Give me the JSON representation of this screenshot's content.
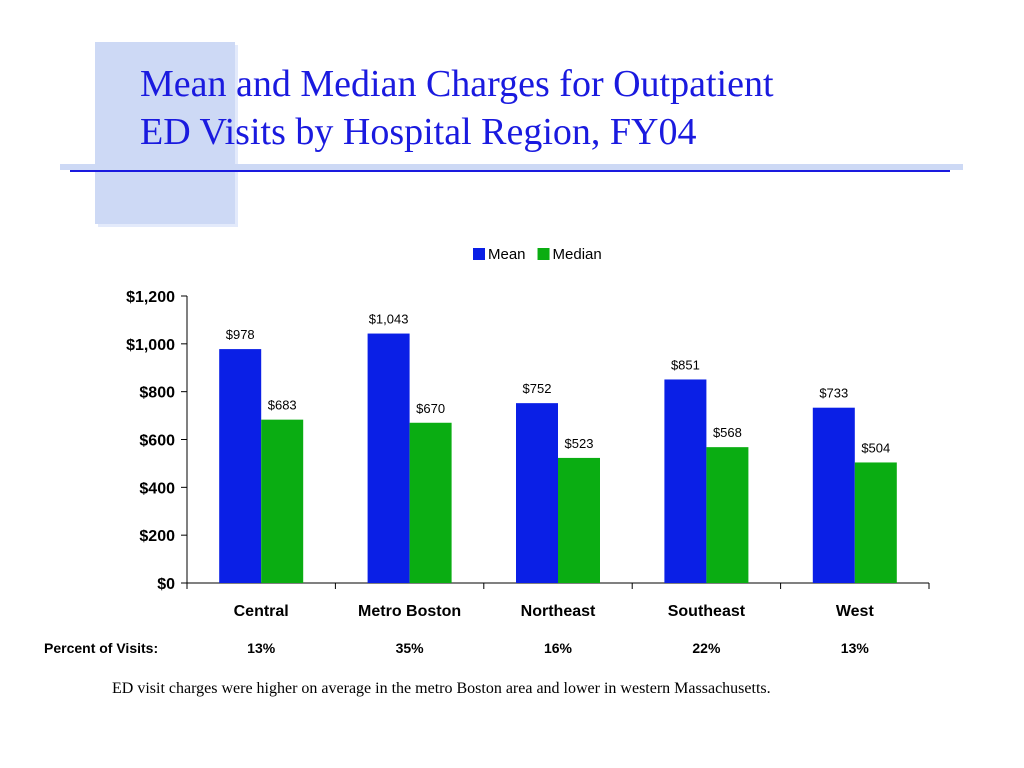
{
  "slide": {
    "title_line1": "Mean and Median Charges for Outpatient",
    "title_line2": "ED Visits by Hospital Region, FY04",
    "percent_label": "Percent of Visits:",
    "percents": [
      "13%",
      "35%",
      "16%",
      "22%",
      "13%"
    ],
    "caption": "ED visit charges were higher on average in the metro Boston area and lower in western Massachusetts."
  },
  "chart_data": {
    "type": "bar",
    "title": "",
    "xlabel": "",
    "ylabel": "",
    "categories": [
      "Central",
      "Metro Boston",
      "Northeast",
      "Southeast",
      "West"
    ],
    "series": [
      {
        "name": "Mean",
        "values": [
          978,
          1043,
          752,
          851,
          733
        ],
        "labels": [
          "$978",
          "$1,043",
          "$752",
          "$851",
          "$733"
        ],
        "color": "#0a1fe6"
      },
      {
        "name": "Median",
        "values": [
          683,
          670,
          523,
          568,
          504
        ],
        "labels": [
          "$683",
          "$670",
          "$523",
          "$568",
          "$504"
        ],
        "color": "#0aad12"
      }
    ],
    "ylim": [
      0,
      1200
    ],
    "yticks": [
      0,
      200,
      400,
      600,
      800,
      1000,
      1200
    ],
    "ytick_labels": [
      "$0",
      "$200",
      "$400",
      "$600",
      "$800",
      "$1,000",
      "$1,200"
    ],
    "legend": "top-center",
    "grid": false
  }
}
